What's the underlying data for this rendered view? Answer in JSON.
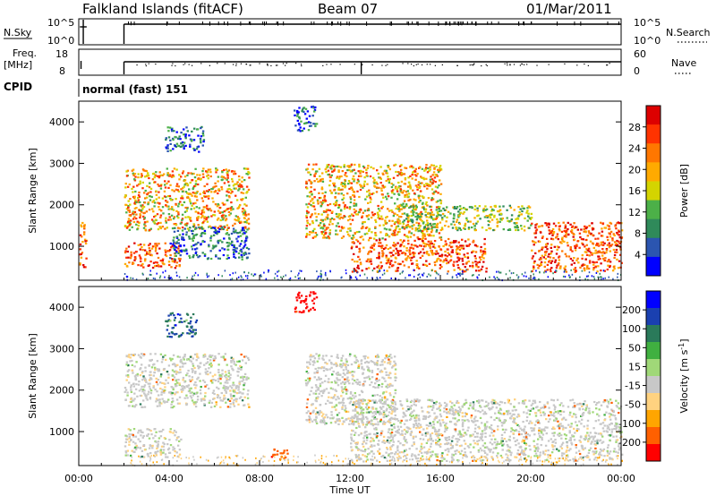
{
  "header": {
    "station": "Falkland Islands (fitACF)",
    "beam": "Beam 07",
    "date": "01/Mar/2011"
  },
  "top_panels": {
    "nsky_label": "N.Sky",
    "nsky_ticks": [
      "10^5",
      "10^0"
    ],
    "nsearch_label": "N.Search",
    "nsearch_ticks": [
      "10^5",
      "10^0"
    ],
    "freq_label_1": "Freq.",
    "freq_label_2": "[MHz]",
    "freq_ticks": [
      "18",
      "8"
    ],
    "nave_label": "Nave",
    "nave_ticks": [
      "60",
      "0"
    ],
    "cpid_label": "CPID",
    "cpid_value": "normal (fast) 151"
  },
  "colors": {
    "power": [
      "#0000ff",
      "#2b55b0",
      "#2f8a5a",
      "#4cb048",
      "#d4d400",
      "#ffaa00",
      "#ff7700",
      "#ff3300",
      "#dd0000"
    ],
    "velocity": [
      "#ff0000",
      "#ff6000",
      "#ffa500",
      "#ffd280",
      "#c8c8c8",
      "#a0d878",
      "#40b040",
      "#2a7a5a",
      "#1a40b0",
      "#0000ff"
    ]
  },
  "chart_data": [
    {
      "type": "heatmap",
      "name": "power",
      "ylabel": "Slant Range [km]",
      "xlabel": "Time UT",
      "x_ticks": [
        "00:00",
        "04:00",
        "08:00",
        "12:00",
        "16:00",
        "20:00",
        "00:00"
      ],
      "y_ticks": [
        "1000",
        "2000",
        "3000",
        "4000"
      ],
      "ylim": [
        180,
        4500
      ],
      "colorbar_label": "Power [dB]",
      "colorbar_ticks": [
        "4",
        "8",
        "12",
        "16",
        "20",
        "24",
        "28"
      ],
      "regions": [
        {
          "t": [
            0.0,
            0.3
          ],
          "r": [
            500,
            1600
          ],
          "level": "high"
        },
        {
          "t": [
            2.0,
            4.5
          ],
          "r": [
            500,
            1100
          ],
          "level": "high"
        },
        {
          "t": [
            2.0,
            7.5
          ],
          "r": [
            1400,
            2900
          ],
          "level": "medium-high"
        },
        {
          "t": [
            3.8,
            5.5
          ],
          "r": [
            3300,
            3900
          ],
          "level": "low"
        },
        {
          "t": [
            4.0,
            7.5
          ],
          "r": [
            700,
            1500
          ],
          "level": "low"
        },
        {
          "t": [
            9.5,
            10.5
          ],
          "r": [
            3800,
            4400
          ],
          "level": "low"
        },
        {
          "t": [
            10.0,
            16.0
          ],
          "r": [
            1200,
            3000
          ],
          "level": "medium-high"
        },
        {
          "t": [
            12.0,
            18.0
          ],
          "r": [
            400,
            1200
          ],
          "level": "high"
        },
        {
          "t": [
            14.0,
            20.0
          ],
          "r": [
            1400,
            2000
          ],
          "level": "medium"
        },
        {
          "t": [
            20.0,
            24.0
          ],
          "r": [
            400,
            1600
          ],
          "level": "high"
        }
      ]
    },
    {
      "type": "heatmap",
      "name": "velocity",
      "ylabel": "Slant Range [km]",
      "xlabel": "Time UT",
      "x_ticks": [
        "00:00",
        "04:00",
        "08:00",
        "12:00",
        "16:00",
        "20:00",
        "00:00"
      ],
      "y_ticks": [
        "1000",
        "2000",
        "3000",
        "4000"
      ],
      "ylim": [
        180,
        4500
      ],
      "colorbar_label": "Velocity [m s^-1]",
      "colorbar_ticks": [
        "200",
        "100",
        "50",
        "15",
        "-15",
        "-50",
        "-100",
        "-200"
      ],
      "regions": [
        {
          "t": [
            2.0,
            7.5
          ],
          "r": [
            1600,
            2900
          ],
          "value": 0
        },
        {
          "t": [
            2.0,
            4.5
          ],
          "r": [
            400,
            1100
          ],
          "value": 0
        },
        {
          "t": [
            3.8,
            5.2
          ],
          "r": [
            3300,
            3900
          ],
          "value": 150
        },
        {
          "t": [
            8.5,
            9.2
          ],
          "r": [
            350,
            650
          ],
          "value": -120
        },
        {
          "t": [
            9.5,
            10.5
          ],
          "r": [
            3900,
            4400
          ],
          "value": -200
        },
        {
          "t": [
            10.0,
            14.0
          ],
          "r": [
            1200,
            2900
          ],
          "value": 0
        },
        {
          "t": [
            12.0,
            24.0
          ],
          "r": [
            300,
            1800
          ],
          "value": 0
        }
      ]
    }
  ]
}
